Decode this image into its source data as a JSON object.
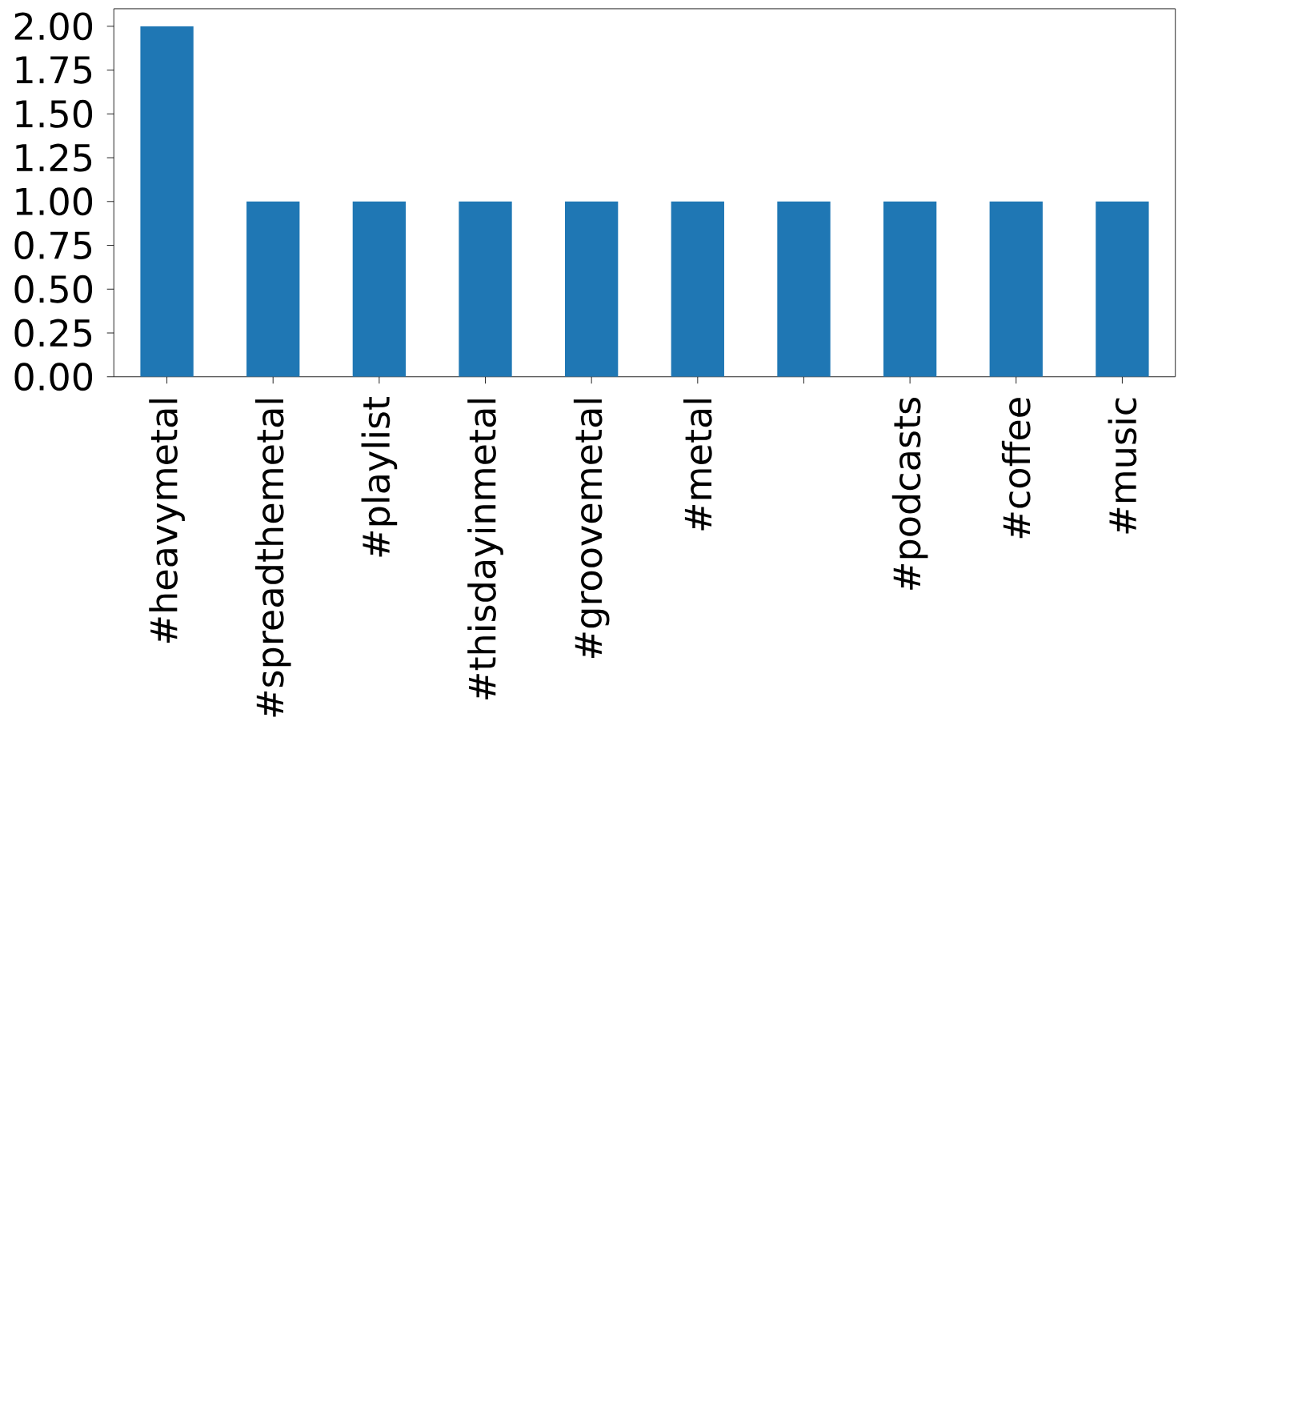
{
  "chart_data": {
    "type": "bar",
    "categories": [
      "#heavymetal",
      "#spreadthemetal",
      "#playlist",
      "#thisdayinmetal",
      "#groovemetal",
      "#metal",
      null,
      "#podcasts",
      "#coffee",
      "#music"
    ],
    "values": [
      2,
      1,
      1,
      1,
      1,
      1,
      1,
      1,
      1,
      1
    ],
    "color": "#1f77b4",
    "ylim": [
      0,
      2.1
    ],
    "yticks": [
      {
        "value": 0,
        "label": "0.00"
      },
      {
        "value": 0.25,
        "label": "0.25"
      },
      {
        "value": 0.5,
        "label": "0.50"
      },
      {
        "value": 0.75,
        "label": "0.75"
      },
      {
        "value": 1,
        "label": "1.00"
      },
      {
        "value": 1.25,
        "label": "1.25"
      },
      {
        "value": 1.5,
        "label": "1.50"
      },
      {
        "value": 1.75,
        "label": "1.75"
      },
      {
        "value": 2,
        "label": "2.00"
      }
    ]
  }
}
